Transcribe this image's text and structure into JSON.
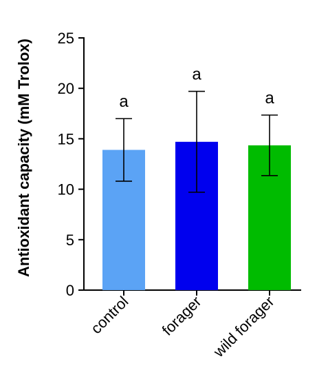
{
  "chart_data": {
    "type": "bar",
    "title": "",
    "xlabel": "",
    "ylabel": "Antioxidant capacity (mM Trolox)",
    "ylim": [
      0,
      25
    ],
    "yticks": [
      0,
      5,
      10,
      15,
      20,
      25
    ],
    "categories": [
      "control",
      "forager",
      "wild forager"
    ],
    "values": [
      13.9,
      14.7,
      14.35
    ],
    "errors": [
      3.1,
      5.0,
      3.0
    ],
    "significance_letters": [
      "a",
      "a",
      "a"
    ],
    "colors": [
      "#5ba3f5",
      "#0000ee",
      "#00bb00"
    ],
    "grid": false,
    "legend": "none"
  }
}
